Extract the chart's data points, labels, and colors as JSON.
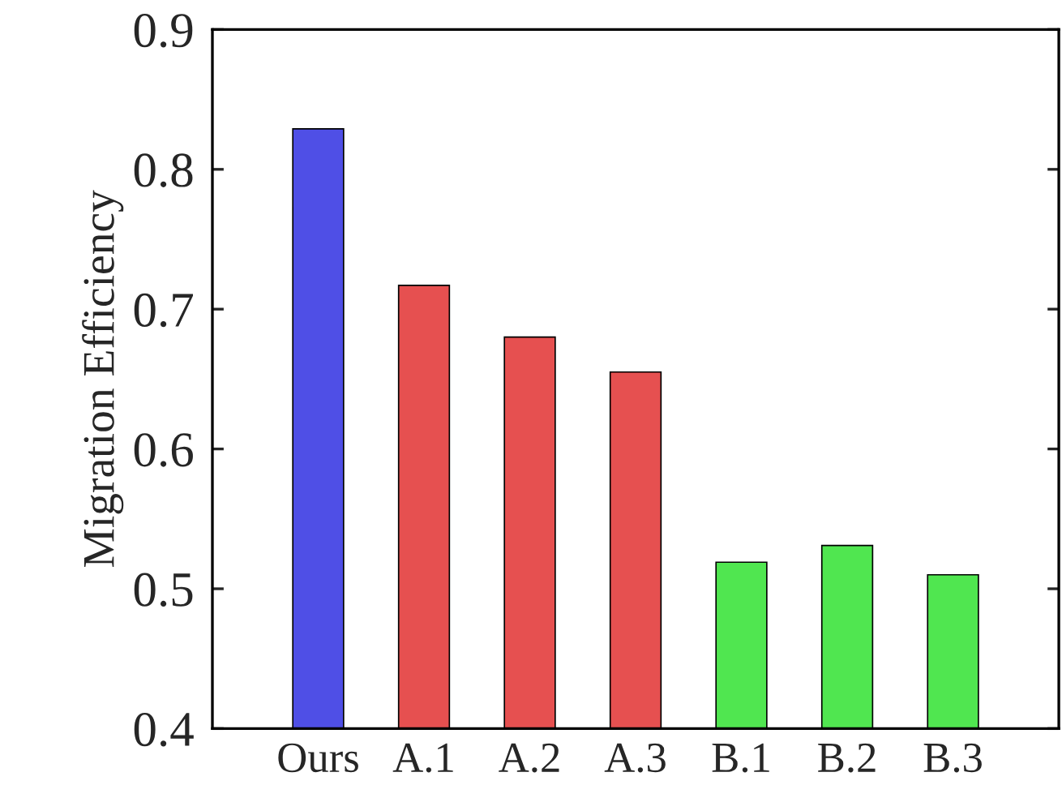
{
  "chart_data": {
    "type": "bar",
    "ylabel": "Migration Efficiency",
    "categories": [
      "Ours",
      "A.1",
      "A.2",
      "A.3",
      "B.1",
      "B.2",
      "B.3"
    ],
    "values": [
      0.829,
      0.717,
      0.68,
      0.655,
      0.519,
      0.531,
      0.51
    ],
    "colors": [
      "#4f4fe6",
      "#e65050",
      "#e65050",
      "#e65050",
      "#50e650",
      "#50e650",
      "#50e650"
    ],
    "ylim": [
      0.4,
      0.9
    ],
    "yticks": [
      0.4,
      0.5,
      0.6,
      0.7,
      0.8,
      0.9
    ],
    "grid": false,
    "legend": false
  }
}
